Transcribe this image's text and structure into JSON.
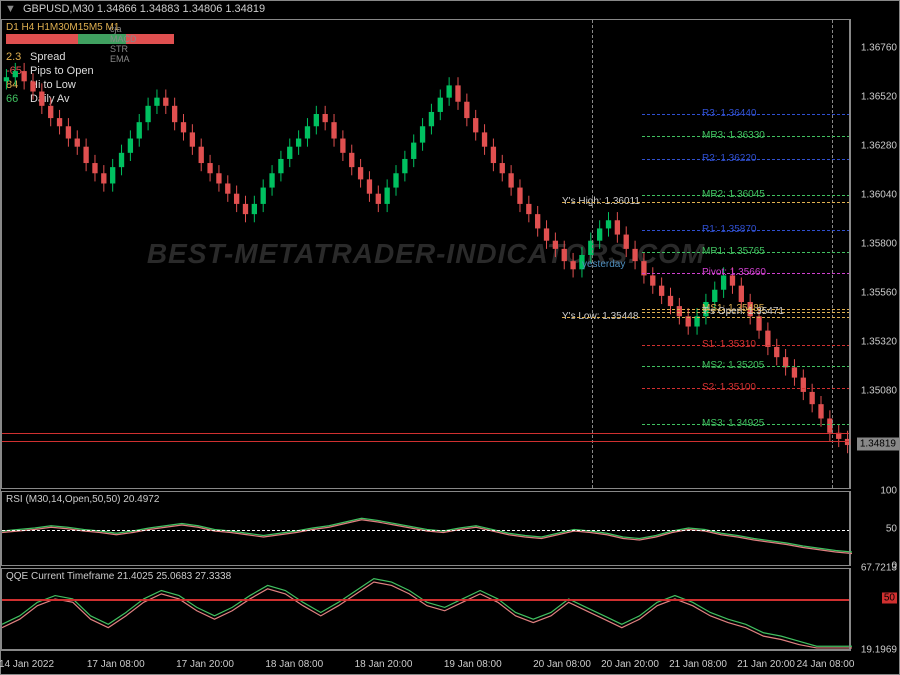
{
  "title": "GBPUSD,M30  1.34866  1.34883  1.34806  1.34819",
  "timeframes_text": "D1 H4 H1M30M15M5 M1",
  "tf_colors": [
    "#e05050",
    "#e05050",
    "#e05050",
    "#40a060",
    "#40a060",
    "#e05050",
    "#e05050"
  ],
  "indicator_lines": [
    {
      "text": "cja",
      "color": "#888"
    },
    {
      "text": "MACD",
      "color": "#888"
    },
    {
      "text": "STR",
      "color": "#888"
    },
    {
      "text": "EMA",
      "color": "#888"
    }
  ],
  "info_rows": [
    {
      "num": "2.3",
      "num_color": "#e0b050",
      "label": "Spread",
      "label_color": "#ddd"
    },
    {
      "num": "-65",
      "num_color": "#e05050",
      "label": "Pips to Open",
      "label_color": "#ddd"
    },
    {
      "num": "84",
      "num_color": "#e0b050",
      "label": "Hi to Low",
      "label_color": "#ddd"
    },
    {
      "num": "66",
      "num_color": "#40c060",
      "label": "Daily Av",
      "label_color": "#ddd"
    }
  ],
  "y_axis_main": {
    "min": 1.346,
    "max": 1.369,
    "ticks": [
      1.3676,
      1.3652,
      1.3628,
      1.3604,
      1.358,
      1.3556,
      1.3532,
      1.3508
    ],
    "current": 1.34819
  },
  "pivots": [
    {
      "label": "R3: 1.36440",
      "val": 1.3644,
      "color": "#3050d0",
      "line_color": "#3050d0"
    },
    {
      "label": "MR3: 1.36330",
      "val": 1.3633,
      "color": "#40c060",
      "line_color": "#40c060"
    },
    {
      "label": "R2: 1.36220",
      "val": 1.3622,
      "color": "#3050d0",
      "line_color": "#3050d0"
    },
    {
      "label": "MR2: 1.36045",
      "val": 1.36045,
      "color": "#40c060",
      "line_color": "#40c060"
    },
    {
      "label": "R1: 1.35870",
      "val": 1.3587,
      "color": "#3050d0",
      "line_color": "#3050d0"
    },
    {
      "label": "MR1: 1.35765",
      "val": 1.35765,
      "color": "#40c060",
      "line_color": "#40c060"
    },
    {
      "label": "Pivot: 1.35660",
      "val": 1.3566,
      "color": "#d040d0",
      "line_color": "#d040d0"
    },
    {
      "label": "MS1: 1.35485",
      "val": 1.35485,
      "color": "#e0b050",
      "line_color": "#e0b050"
    },
    {
      "label": "T's Open: 1.35471",
      "val": 1.35471,
      "color": "#ccc",
      "line_color": "#e0b050"
    },
    {
      "label": "S1: 1.35310",
      "val": 1.3531,
      "color": "#d03030",
      "line_color": "#d03030"
    },
    {
      "label": "MS2: 1.35205",
      "val": 1.35205,
      "color": "#40c060",
      "line_color": "#40c060"
    },
    {
      "label": "S2: 1.35100",
      "val": 1.351,
      "color": "#d03030",
      "line_color": "#d03030"
    },
    {
      "label": "MS3: 1.34925",
      "val": 1.34925,
      "color": "#40c060",
      "line_color": "#40c060"
    }
  ],
  "y_labels_extra": [
    {
      "text": "Y's High: 1.36011",
      "val": 1.36011,
      "x": 560,
      "color": "#ccc"
    },
    {
      "text": "yesterday",
      "val": 1.357,
      "x": 580,
      "color": "#5090c0"
    },
    {
      "text": "Y's Low: 1.35448",
      "val": 1.35448,
      "x": 560,
      "color": "#ccc"
    }
  ],
  "vlines": [
    590,
    830
  ],
  "watermark": "BEST-METATRADER-INDICATORS.COM",
  "rsi": {
    "label": "RSI (M30,14,Open,50,50) 20.4972",
    "ticks": [
      100,
      50,
      0
    ],
    "level50": 50,
    "values_green": [
      48,
      50,
      52,
      55,
      53,
      50,
      48,
      45,
      48,
      52,
      55,
      58,
      55,
      50,
      48,
      45,
      42,
      45,
      48,
      52,
      55,
      60,
      65,
      62,
      58,
      54,
      50,
      48,
      52,
      55,
      50,
      45,
      42,
      40,
      45,
      50,
      48,
      45,
      40,
      38,
      42,
      48,
      52,
      50,
      45,
      42,
      38,
      35,
      32,
      28,
      25,
      22,
      20
    ],
    "values_red": [
      46,
      48,
      50,
      53,
      51,
      48,
      46,
      43,
      46,
      50,
      53,
      56,
      53,
      48,
      46,
      43,
      40,
      43,
      46,
      50,
      53,
      58,
      63,
      60,
      56,
      52,
      48,
      46,
      50,
      53,
      48,
      43,
      40,
      38,
      43,
      48,
      46,
      43,
      38,
      36,
      40,
      46,
      50,
      48,
      43,
      40,
      36,
      33,
      30,
      26,
      23,
      20,
      18
    ]
  },
  "qqe": {
    "label": "QQE Current Timeframe 21.4025 25.0683 27.3338",
    "ticks": [
      67.7213,
      50,
      19.1969
    ],
    "level50": 50,
    "values_green": [
      35,
      40,
      48,
      52,
      50,
      40,
      35,
      42,
      50,
      55,
      52,
      45,
      40,
      45,
      52,
      58,
      55,
      48,
      42,
      48,
      55,
      62,
      60,
      55,
      48,
      45,
      50,
      55,
      50,
      42,
      38,
      42,
      50,
      45,
      40,
      35,
      40,
      48,
      52,
      48,
      42,
      38,
      35,
      30,
      28,
      25,
      22,
      22,
      22
    ],
    "values_red": [
      33,
      38,
      46,
      50,
      48,
      38,
      33,
      40,
      48,
      53,
      50,
      43,
      38,
      43,
      50,
      56,
      53,
      46,
      40,
      46,
      53,
      60,
      58,
      53,
      46,
      43,
      48,
      53,
      48,
      40,
      36,
      40,
      48,
      43,
      38,
      33,
      38,
      46,
      50,
      46,
      40,
      36,
      33,
      28,
      26,
      23,
      21,
      21,
      21
    ]
  },
  "x_ticks": [
    {
      "label": "14 Jan 2022",
      "pos": 0.03
    },
    {
      "label": "17 Jan 08:00",
      "pos": 0.135
    },
    {
      "label": "17 Jan 20:00",
      "pos": 0.24
    },
    {
      "label": "18 Jan 08:00",
      "pos": 0.345
    },
    {
      "label": "18 Jan 20:00",
      "pos": 0.45
    },
    {
      "label": "19 Jan 08:00",
      "pos": 0.555
    },
    {
      "label": "20 Jan 08:00",
      "pos": 0.66
    },
    {
      "label": "20 Jan 20:00",
      "pos": 0.74
    },
    {
      "label": "21 Jan 08:00",
      "pos": 0.82
    },
    {
      "label": "21 Jan 20:00",
      "pos": 0.9
    },
    {
      "label": "24 Jan 08:00",
      "pos": 0.97
    }
  ],
  "candles": {
    "up_color": "#00c060",
    "down_color": "#e05050",
    "start_price": 1.366,
    "series": [
      1.3662,
      1.3665,
      1.366,
      1.3655,
      1.3648,
      1.3642,
      1.3638,
      1.3632,
      1.3628,
      1.362,
      1.3615,
      1.361,
      1.3618,
      1.3625,
      1.3632,
      1.364,
      1.3648,
      1.3652,
      1.3648,
      1.364,
      1.3635,
      1.3628,
      1.362,
      1.3615,
      1.361,
      1.3605,
      1.36,
      1.3595,
      1.36,
      1.3608,
      1.3615,
      1.3622,
      1.3628,
      1.3632,
      1.3638,
      1.3644,
      1.364,
      1.3632,
      1.3625,
      1.3618,
      1.3612,
      1.3605,
      1.36,
      1.3608,
      1.3615,
      1.3622,
      1.363,
      1.3638,
      1.3645,
      1.3652,
      1.3658,
      1.365,
      1.3642,
      1.3635,
      1.3628,
      1.362,
      1.3615,
      1.3608,
      1.36,
      1.3595,
      1.3588,
      1.3582,
      1.3578,
      1.3572,
      1.3568,
      1.3575,
      1.3582,
      1.3588,
      1.3592,
      1.3585,
      1.3578,
      1.3572,
      1.3565,
      1.356,
      1.3555,
      1.355,
      1.3545,
      1.354,
      1.3545,
      1.3552,
      1.3558,
      1.3565,
      1.356,
      1.3552,
      1.3545,
      1.3538,
      1.353,
      1.3525,
      1.352,
      1.3515,
      1.3508,
      1.3502,
      1.3495,
      1.3488,
      1.3485,
      1.3482
    ]
  }
}
